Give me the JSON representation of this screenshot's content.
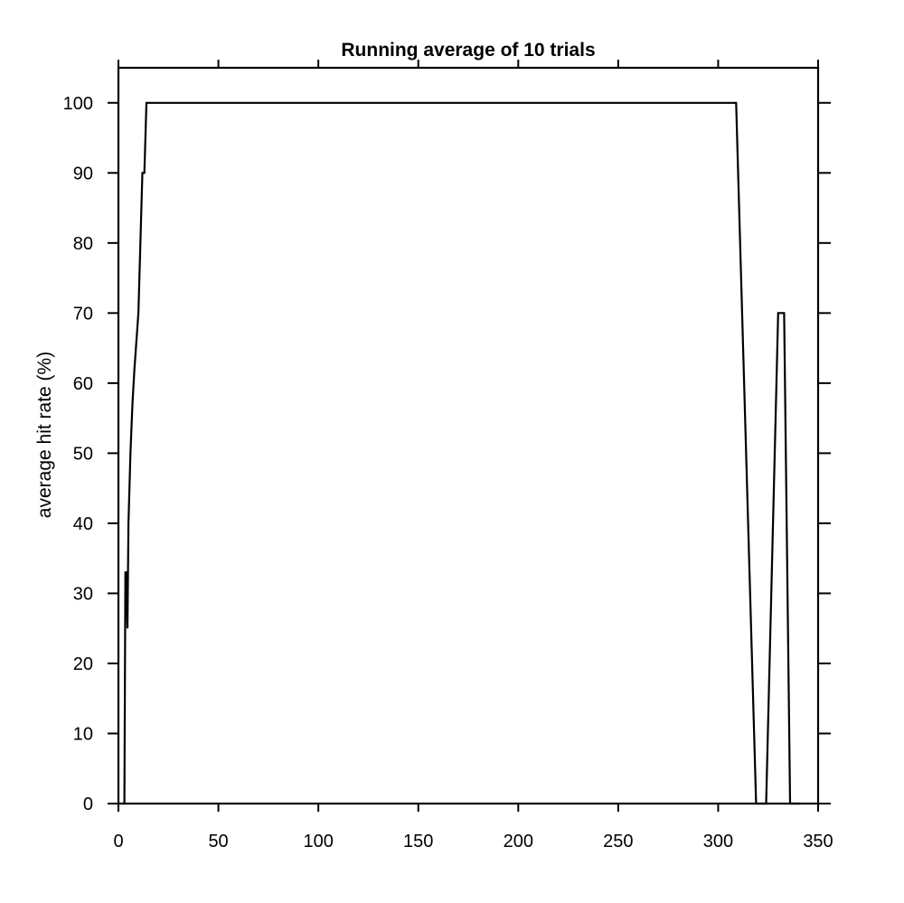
{
  "chart_data": {
    "type": "line",
    "title": "Running average of 10 trials",
    "xlabel": "",
    "ylabel": "average hit rate (%)",
    "xlim": [
      0,
      350
    ],
    "ylim": [
      0,
      105
    ],
    "grid": false,
    "x_ticks": [
      0,
      50,
      100,
      150,
      200,
      250,
      300,
      350
    ],
    "y_ticks": [
      0,
      10,
      20,
      30,
      40,
      50,
      60,
      70,
      80,
      90,
      100
    ],
    "line_color": "#000000",
    "series": [
      {
        "x": [
          2,
          2.5,
          3,
          3.5,
          4,
          4.5,
          5,
          6,
          7,
          8,
          9,
          10,
          11,
          12,
          13,
          14,
          15,
          16,
          309,
          319,
          324,
          330,
          333,
          336,
          341
        ],
        "y": [
          0,
          0,
          0,
          33,
          33,
          25,
          40,
          50,
          57,
          62,
          66,
          70,
          80,
          90,
          90,
          100,
          100,
          100,
          100,
          0,
          0,
          70,
          70,
          0,
          0
        ]
      }
    ]
  }
}
